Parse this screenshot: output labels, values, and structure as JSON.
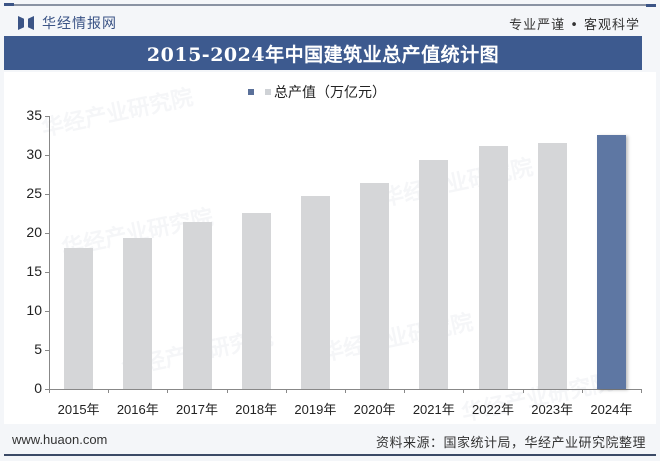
{
  "header": {
    "logo_text": "华经情报网",
    "slogan": "专业严谨 • 客观科学",
    "title": "2015-2024年中国建筑业总产值统计图"
  },
  "legend": {
    "label": "总产值（万亿元）"
  },
  "footer": {
    "website": "www.huaon.com",
    "source": "资料来源：国家统计局，华经产业研究院整理"
  },
  "watermark": "华经产业研究院",
  "colors": {
    "title_bar": "#3d5a8f",
    "bar_default": "#d5d6d8",
    "bar_highlight": "#5e77a3"
  },
  "chart_data": {
    "type": "bar",
    "title": "2015-2024年中国建筑业总产值统计图",
    "categories": [
      "2015年",
      "2016年",
      "2017年",
      "2018年",
      "2019年",
      "2020年",
      "2021年",
      "2022年",
      "2023年",
      "2024年"
    ],
    "series": [
      {
        "name": "总产值（万亿元）",
        "values": [
          18.1,
          19.4,
          21.4,
          22.6,
          24.8,
          26.4,
          29.3,
          31.2,
          31.6,
          32.6
        ]
      }
    ],
    "highlight_index": 9,
    "xlabel": "",
    "ylabel": "",
    "ylim": [
      0,
      35
    ],
    "yticks": [
      0,
      5,
      10,
      15,
      20,
      25,
      30,
      35
    ],
    "grid": false,
    "legend_position": "top-center"
  }
}
